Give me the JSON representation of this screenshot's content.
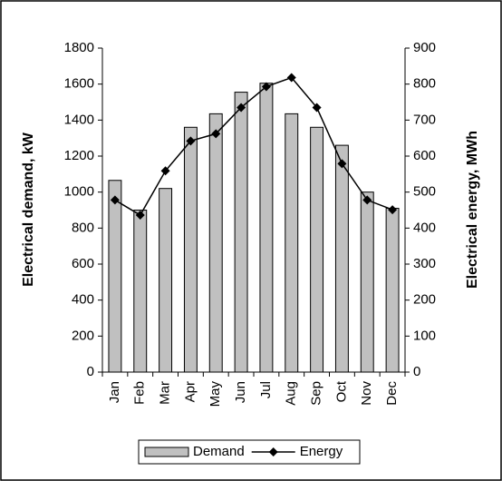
{
  "chart_data": {
    "type": "bar",
    "categories": [
      "Jan",
      "Feb",
      "Mar",
      "Apr",
      "May",
      "Jun",
      "Jul",
      "Aug",
      "Sep",
      "Oct",
      "Nov",
      "Dec"
    ],
    "series": [
      {
        "name": "Demand",
        "type": "bar",
        "color": "#c0c0c0",
        "values": [
          1065,
          900,
          1020,
          1360,
          1435,
          1555,
          1605,
          1435,
          1360,
          1260,
          1000,
          910
        ]
      },
      {
        "name": "Energy",
        "type": "line",
        "axis": "y2",
        "color": "#000000",
        "values": [
          478,
          436,
          559,
          642,
          662,
          735,
          793,
          818,
          735,
          579,
          478,
          451
        ]
      }
    ],
    "y_label": "Electrical demand, kW",
    "y2_label": "Electrical energy, MWh",
    "ylim": [
      0,
      1800
    ],
    "yticks": [
      0,
      200,
      400,
      600,
      800,
      1000,
      1200,
      1400,
      1600,
      1800
    ],
    "y2lim": [
      0,
      900
    ],
    "y2ticks": [
      0,
      100,
      200,
      300,
      400,
      500,
      600,
      700,
      800,
      900
    ],
    "grid": false,
    "legend": "bottom"
  }
}
